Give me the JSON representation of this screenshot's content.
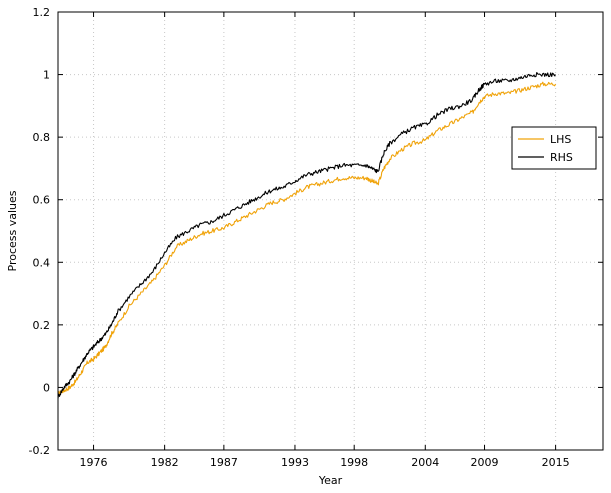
{
  "chart_data": {
    "type": "line",
    "title": "",
    "xlabel": "Year",
    "ylabel": "Process values",
    "xlim": [
      1973.0,
      2019.0
    ],
    "ylim": [
      -0.2,
      1.2
    ],
    "xticks": [
      1976,
      1982,
      1987,
      1993,
      1998,
      2004,
      2009,
      2015
    ],
    "yticks": [
      -0.2,
      0,
      0.2,
      0.4,
      0.6,
      0.8,
      1,
      1.2
    ],
    "ytick_labels": [
      "-0.2",
      "0",
      "0.2",
      "0.4",
      "0.6",
      "0.8",
      "1",
      "1.2"
    ],
    "grid": true,
    "legend_position": "right",
    "series": [
      {
        "name": "LHS",
        "color": "#f0a30a",
        "x": [
          1973.0,
          1973.5,
          1974.0,
          1974.5,
          1975.0,
          1975.5,
          1976.0,
          1976.5,
          1977.0,
          1977.5,
          1978.0,
          1979.0,
          1980.0,
          1981.0,
          1982.0,
          1983.0,
          1984.0,
          1985.0,
          1986.0,
          1987.0,
          1988.0,
          1989.0,
          1990.0,
          1991.0,
          1992.0,
          1993.0,
          1994.0,
          1995.0,
          1996.0,
          1997.0,
          1998.0,
          1999.0,
          1999.5,
          2000.0,
          2000.5,
          2001.0,
          2002.0,
          2003.0,
          2004.0,
          2005.0,
          2006.0,
          2007.0,
          2008.0,
          2008.5,
          2009.0,
          2010.0,
          2011.0,
          2012.0,
          2013.0,
          2014.0,
          2015.0
        ],
        "y": [
          -0.02,
          -0.01,
          0.0,
          0.02,
          0.05,
          0.08,
          0.09,
          0.11,
          0.13,
          0.17,
          0.2,
          0.26,
          0.3,
          0.34,
          0.39,
          0.45,
          0.47,
          0.49,
          0.5,
          0.51,
          0.53,
          0.55,
          0.57,
          0.59,
          0.6,
          0.62,
          0.64,
          0.65,
          0.66,
          0.67,
          0.67,
          0.67,
          0.66,
          0.65,
          0.7,
          0.73,
          0.76,
          0.78,
          0.79,
          0.82,
          0.84,
          0.86,
          0.88,
          0.91,
          0.93,
          0.94,
          0.94,
          0.95,
          0.96,
          0.97,
          0.97
        ]
      },
      {
        "name": "RHS",
        "color": "#000000",
        "x": [
          1973.0,
          1973.5,
          1974.0,
          1974.5,
          1975.0,
          1975.5,
          1976.0,
          1976.5,
          1977.0,
          1977.5,
          1978.0,
          1979.0,
          1980.0,
          1981.0,
          1982.0,
          1983.0,
          1984.0,
          1985.0,
          1986.0,
          1987.0,
          1988.0,
          1989.0,
          1990.0,
          1991.0,
          1992.0,
          1993.0,
          1994.0,
          1995.0,
          1996.0,
          1997.0,
          1998.0,
          1999.0,
          1999.5,
          2000.0,
          2000.5,
          2001.0,
          2002.0,
          2003.0,
          2004.0,
          2005.0,
          2006.0,
          2007.0,
          2008.0,
          2008.5,
          2009.0,
          2010.0,
          2011.0,
          2012.0,
          2013.0,
          2014.0,
          2015.0
        ],
        "y": [
          -0.03,
          0.0,
          0.02,
          0.05,
          0.08,
          0.11,
          0.13,
          0.15,
          0.17,
          0.2,
          0.24,
          0.29,
          0.33,
          0.37,
          0.43,
          0.48,
          0.5,
          0.52,
          0.53,
          0.55,
          0.57,
          0.59,
          0.61,
          0.63,
          0.64,
          0.66,
          0.68,
          0.69,
          0.7,
          0.71,
          0.71,
          0.71,
          0.7,
          0.69,
          0.75,
          0.78,
          0.81,
          0.83,
          0.84,
          0.87,
          0.89,
          0.9,
          0.92,
          0.95,
          0.97,
          0.98,
          0.98,
          0.99,
          1.0,
          1.0,
          1.0
        ]
      }
    ]
  }
}
